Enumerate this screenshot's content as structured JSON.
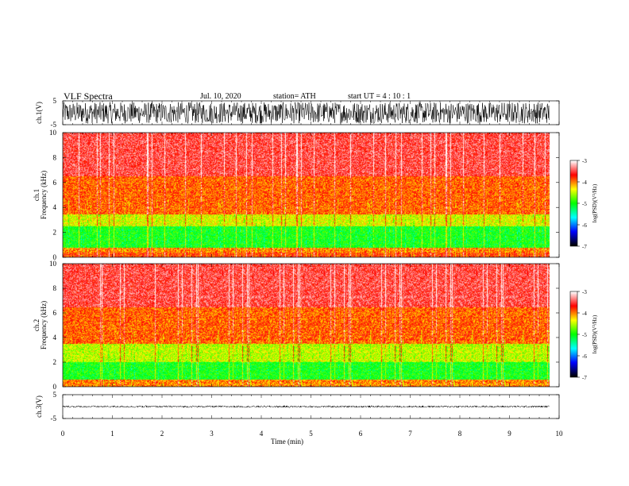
{
  "header": {
    "title": "VLF  Spectra",
    "date": "Jul.  10,  2020",
    "station": "station= ATH",
    "start": "start  UT  =   4  : 10 : 1"
  },
  "chart_data": {
    "type": "heatmap",
    "xlabel": "Time  (min)",
    "xlim": [
      0,
      10
    ],
    "xticks": [
      "0",
      "1",
      "2",
      "3",
      "4",
      "5",
      "6",
      "7",
      "8",
      "9",
      "10"
    ],
    "data_end_min": 9.8,
    "panels": [
      {
        "id": "ch1-waveform",
        "type": "line",
        "ylabel": "ch.1(V)",
        "ylim": [
          -5,
          5
        ],
        "yticks": [
          "5",
          "-5"
        ],
        "color": "#000000",
        "amplitude_range": [
          -4.5,
          4.5
        ]
      },
      {
        "id": "ch1-spectrogram",
        "type": "heatmap",
        "ylabel_lines": [
          "ch.1",
          "Frequency  (kHz)"
        ],
        "ylim": [
          0,
          10
        ],
        "yticks": [
          "0",
          "2",
          "4",
          "6",
          "8",
          "10"
        ],
        "bands_khz": [
          {
            "from": 0,
            "to": 0.4,
            "log_psd": -3.8
          },
          {
            "from": 0.4,
            "to": 0.8,
            "log_psd": -4.0
          },
          {
            "from": 0.8,
            "to": 2.5,
            "log_psd": -5.0
          },
          {
            "from": 2.5,
            "to": 3.5,
            "log_psd": -4.4
          },
          {
            "from": 3.5,
            "to": 6.5,
            "log_psd": -3.9
          },
          {
            "from": 6.5,
            "to": 10,
            "log_psd": -3.5
          }
        ],
        "colorbar": {
          "label": "log(PSD)(V²/Hz)",
          "range": [
            -7,
            -3
          ],
          "ticks": [
            "-3",
            "-4",
            "-5",
            "-6",
            "-7"
          ]
        }
      },
      {
        "id": "ch2-spectrogram",
        "type": "heatmap",
        "ylabel_lines": [
          "ch.2",
          "Frequency  (kHz)"
        ],
        "ylim": [
          0,
          10
        ],
        "yticks": [
          "0",
          "2",
          "4",
          "6",
          "8",
          "10"
        ],
        "bands_khz": [
          {
            "from": 0,
            "to": 0.6,
            "log_psd": -4.0
          },
          {
            "from": 0.6,
            "to": 2.0,
            "log_psd": -5.0
          },
          {
            "from": 2.0,
            "to": 3.5,
            "log_psd": -4.5
          },
          {
            "from": 3.5,
            "to": 6.5,
            "log_psd": -3.9
          },
          {
            "from": 6.5,
            "to": 10,
            "log_psd": -3.5
          }
        ],
        "colorbar": {
          "label": "log(PSD)(V²/Hz)",
          "range": [
            -7,
            -3
          ],
          "ticks": [
            "-3",
            "-4",
            "-5",
            "-6",
            "-7"
          ]
        }
      },
      {
        "id": "ch3-waveform",
        "type": "line",
        "ylabel": "ch.3(V)",
        "ylim": [
          -5,
          5
        ],
        "yticks": [
          "5",
          "-5"
        ],
        "color": "#000000",
        "amplitude_range": [
          -0.4,
          0.4
        ]
      }
    ],
    "colormap": [
      "#000000",
      "#0000ff",
      "#00ffff",
      "#00ff00",
      "#ffff00",
      "#ff0000",
      "#ffffff"
    ]
  }
}
